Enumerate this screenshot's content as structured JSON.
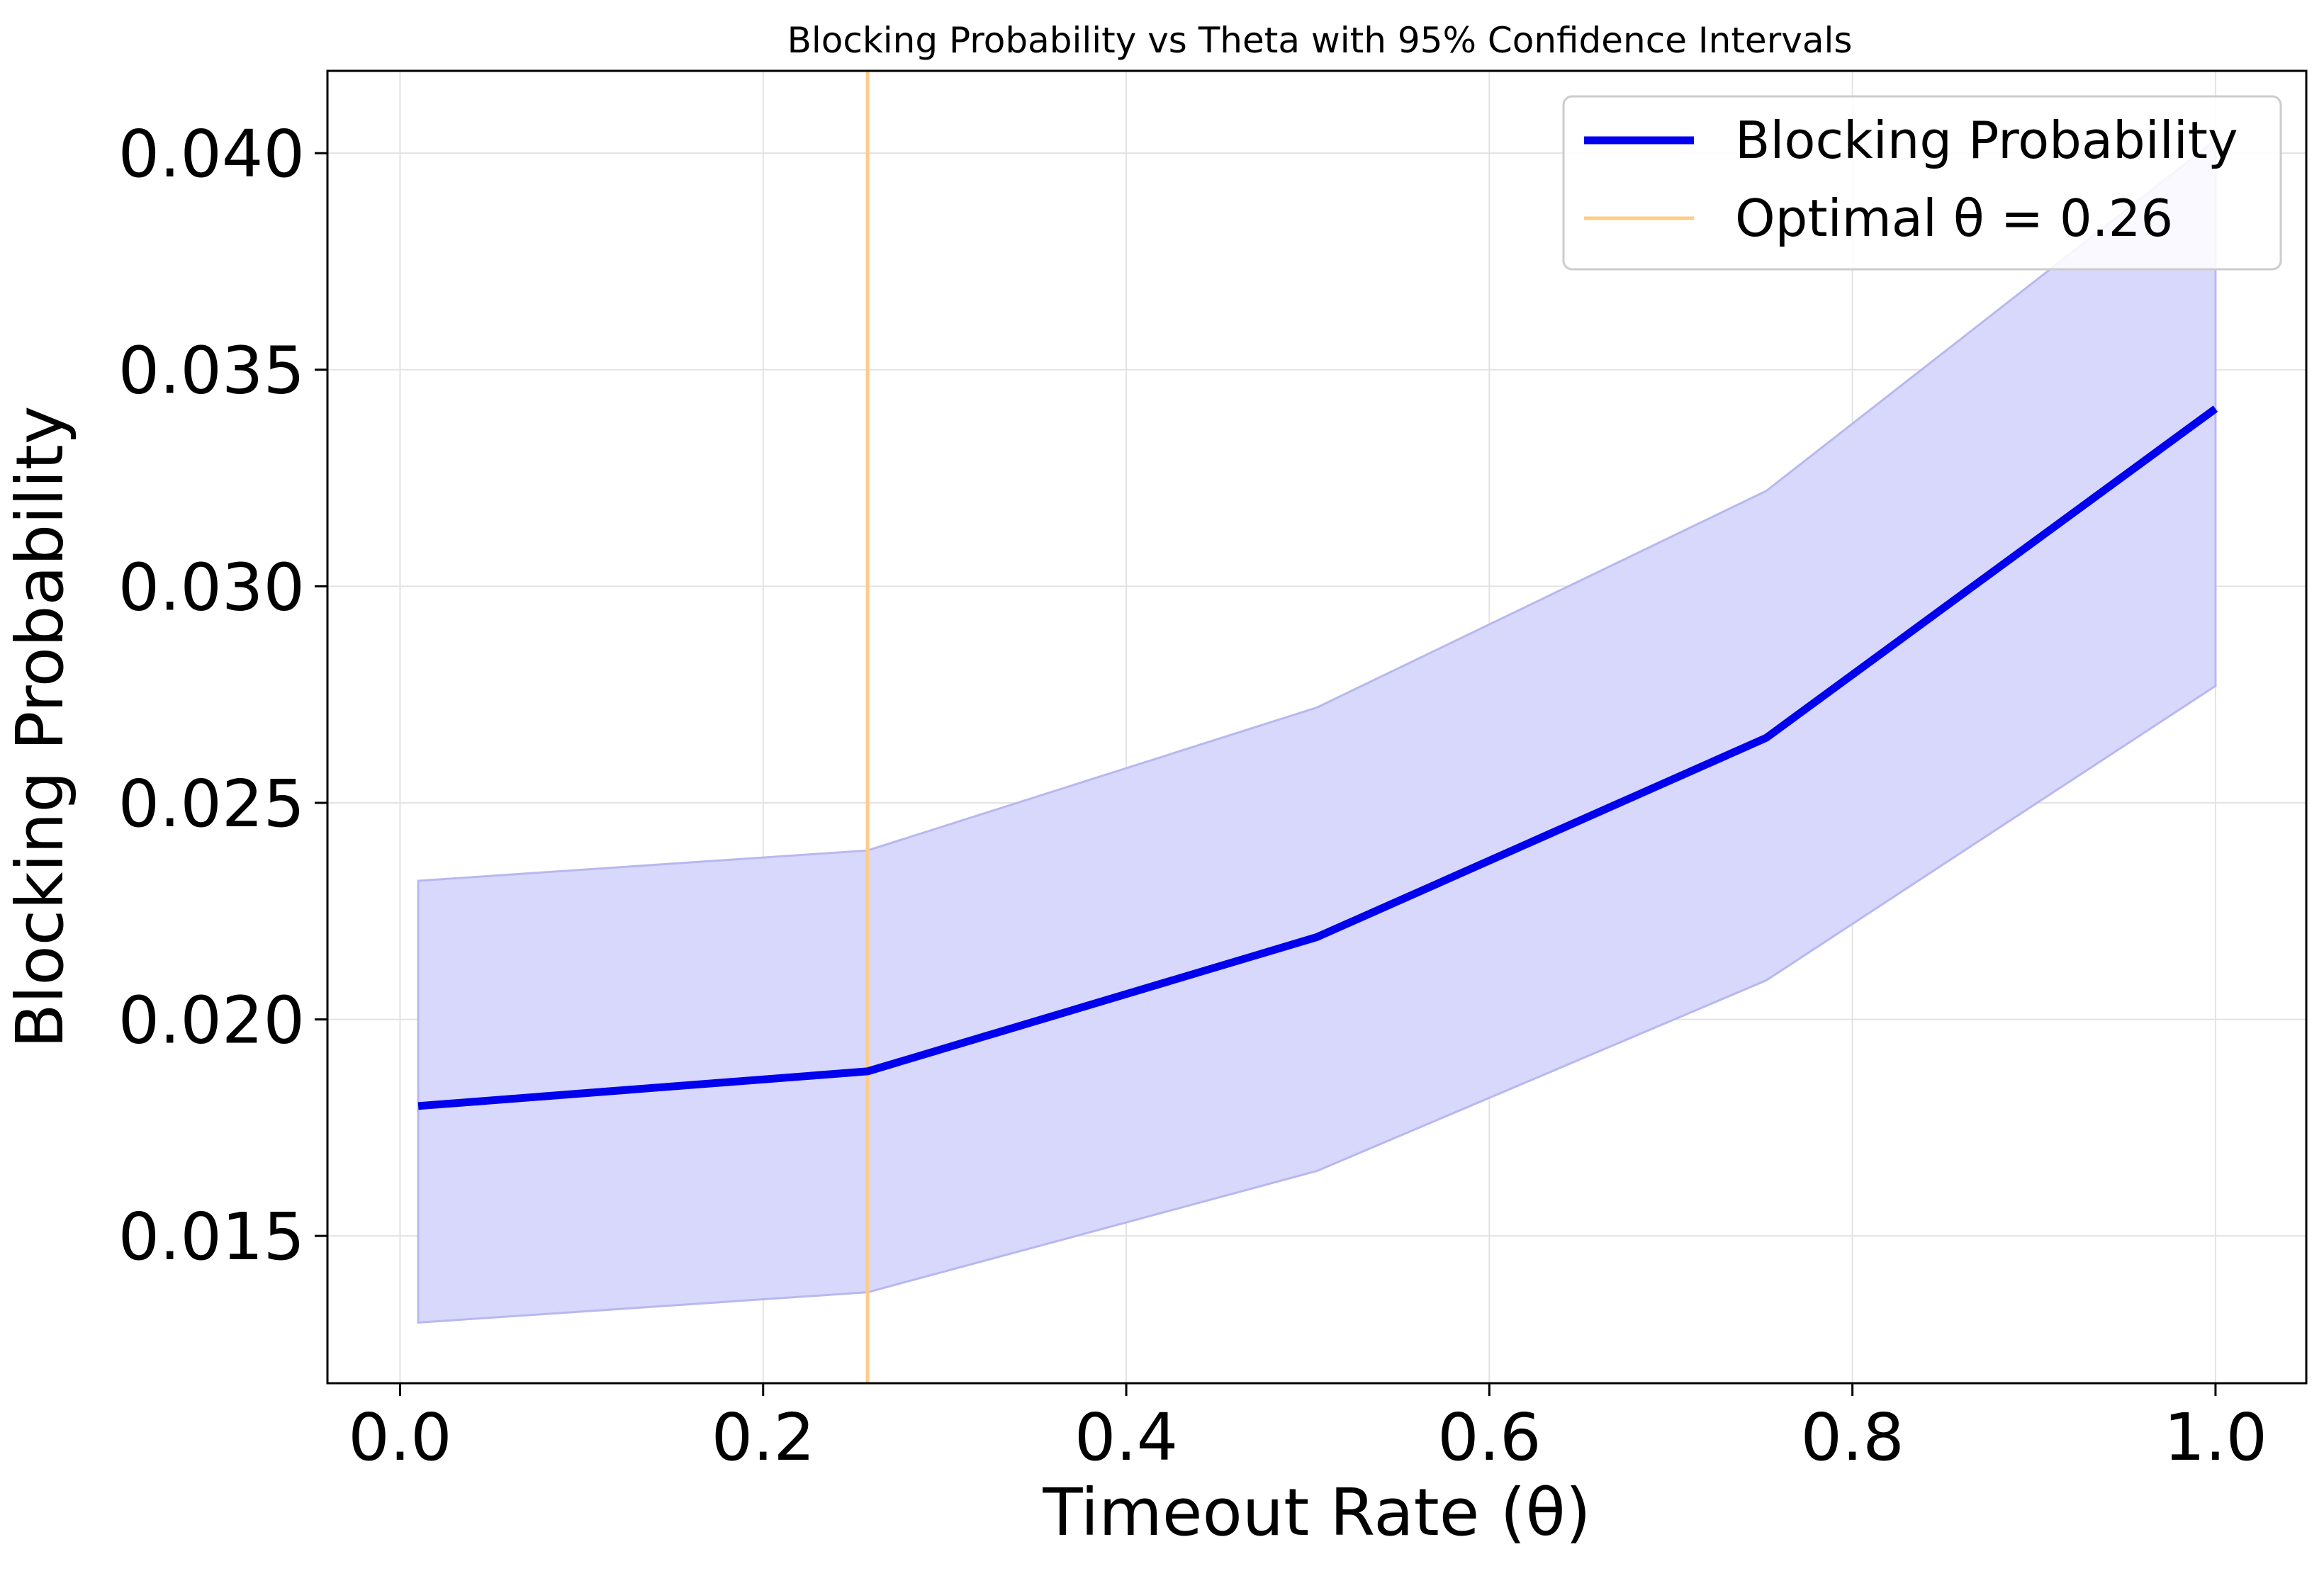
{
  "chart_data": {
    "type": "line",
    "title": "Blocking Probability vs Theta with 95% Confidence Intervals",
    "xlabel": "Timeout Rate (θ)",
    "ylabel": "Blocking Probability",
    "xlim": [
      -0.04,
      1.05
    ],
    "ylim": [
      0.0116,
      0.0419
    ],
    "x_ticks": [
      0.0,
      0.2,
      0.4,
      0.6,
      0.8,
      1.0
    ],
    "x_tick_labels": [
      "0.0",
      "0.2",
      "0.4",
      "0.6",
      "0.8",
      "1.0"
    ],
    "y_ticks": [
      0.015,
      0.02,
      0.025,
      0.03,
      0.035,
      0.04
    ],
    "y_tick_labels": [
      "0.015",
      "0.020",
      "0.025",
      "0.030",
      "0.035",
      "0.040"
    ],
    "grid": true,
    "legend_position": "top-right",
    "series": [
      {
        "name": "Blocking Probability",
        "color": "#0000ee",
        "x": [
          0.01,
          0.2575,
          0.505,
          0.7525,
          1.0
        ],
        "y": [
          0.018,
          0.0188,
          0.0219,
          0.0265,
          0.0341
        ],
        "ci_lower": [
          0.013,
          0.0137,
          0.0165,
          0.0209,
          0.0277
        ],
        "ci_upper": [
          0.0232,
          0.0239,
          0.0272,
          0.0322,
          0.0403
        ],
        "band_color": "#d8d8fc"
      }
    ],
    "reference_line": {
      "name": "Optimal θ = 0.26",
      "x": 0.2575,
      "color": "#ffcc88"
    }
  }
}
